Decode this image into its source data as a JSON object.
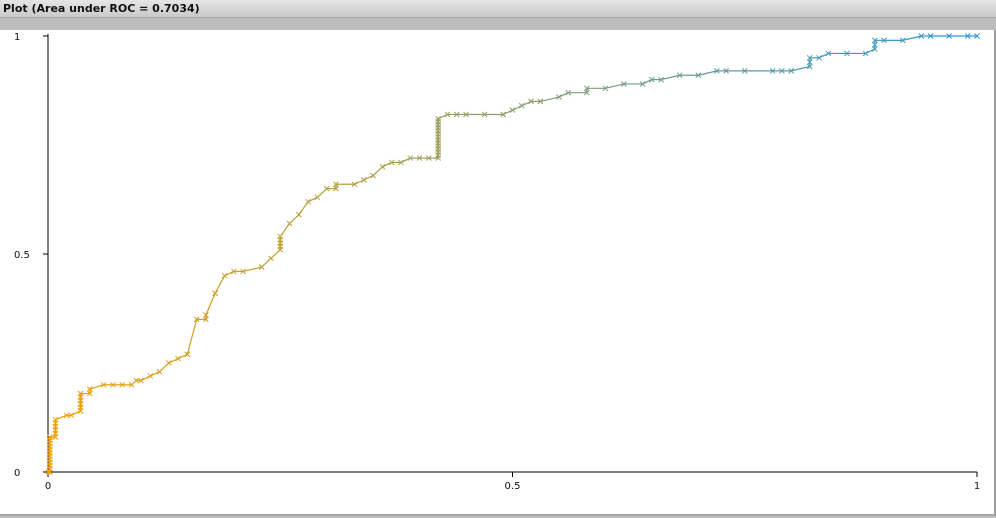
{
  "window": {
    "title": "Plot (Area under ROC = 0.7034)"
  },
  "chart_data": {
    "type": "line",
    "title": "",
    "xlabel": "",
    "ylabel": "",
    "xlim": [
      0,
      1
    ],
    "ylim": [
      0,
      1
    ],
    "x_ticks": [
      "0",
      "0.5",
      "1"
    ],
    "y_ticks": [
      "0",
      "0.5",
      "1"
    ],
    "grid": false,
    "marker": "x",
    "color_gradient": [
      "#f0a000",
      "#2a9ad6"
    ],
    "series": [
      {
        "x": [
          0,
          0.002,
          0.002,
          0.008,
          0.008,
          0.02,
          0.025,
          0.035,
          0.035,
          0.045,
          0.045,
          0.06,
          0.07,
          0.08,
          0.09,
          0.095,
          0.1,
          0.11,
          0.12,
          0.13,
          0.14,
          0.15,
          0.15,
          0.16,
          0.17,
          0.17,
          0.18,
          0.18,
          0.19,
          0.2,
          0.21,
          0.23,
          0.23,
          0.24,
          0.25,
          0.25,
          0.26,
          0.27,
          0.28,
          0.29,
          0.3,
          0.31,
          0.31,
          0.33,
          0.34,
          0.35,
          0.36,
          0.37,
          0.38,
          0.39,
          0.4,
          0.41,
          0.42,
          0.42,
          0.43,
          0.44,
          0.45,
          0.47,
          0.49,
          0.5,
          0.51,
          0.52,
          0.53,
          0.55,
          0.56,
          0.58,
          0.58,
          0.6,
          0.62,
          0.64,
          0.65,
          0.66,
          0.68,
          0.7,
          0.72,
          0.73,
          0.75,
          0.78,
          0.79,
          0.8,
          0.82,
          0.82,
          0.83,
          0.84,
          0.86,
          0.88,
          0.89,
          0.89,
          0.9,
          0.92,
          0.94,
          0.95,
          0.97,
          0.99,
          1.0
        ],
        "y": [
          0,
          0,
          0.08,
          0.08,
          0.12,
          0.13,
          0.13,
          0.14,
          0.18,
          0.18,
          0.19,
          0.2,
          0.2,
          0.2,
          0.2,
          0.21,
          0.21,
          0.22,
          0.23,
          0.25,
          0.26,
          0.27,
          0.27,
          0.35,
          0.35,
          0.36,
          0.41,
          0.41,
          0.45,
          0.46,
          0.46,
          0.47,
          0.47,
          0.49,
          0.51,
          0.54,
          0.57,
          0.59,
          0.62,
          0.63,
          0.65,
          0.65,
          0.66,
          0.66,
          0.67,
          0.68,
          0.7,
          0.71,
          0.71,
          0.72,
          0.72,
          0.72,
          0.72,
          0.81,
          0.82,
          0.82,
          0.82,
          0.82,
          0.82,
          0.83,
          0.84,
          0.85,
          0.85,
          0.86,
          0.87,
          0.87,
          0.88,
          0.88,
          0.89,
          0.89,
          0.9,
          0.9,
          0.91,
          0.91,
          0.92,
          0.92,
          0.92,
          0.92,
          0.92,
          0.92,
          0.93,
          0.95,
          0.95,
          0.96,
          0.96,
          0.96,
          0.97,
          0.99,
          0.99,
          0.99,
          1.0,
          1.0,
          1.0,
          1.0,
          1.0
        ]
      }
    ]
  }
}
